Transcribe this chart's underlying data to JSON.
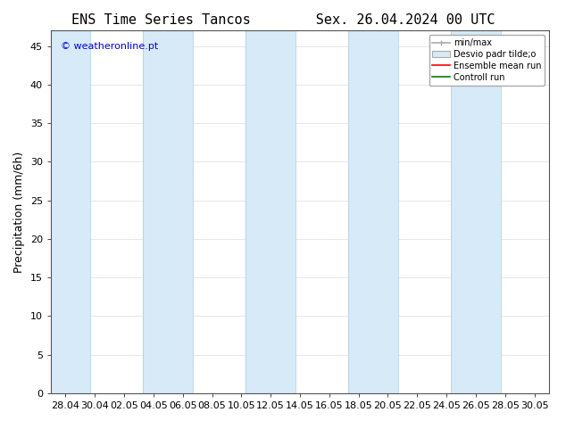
{
  "title_left": "ENS Time Series Tancos",
  "title_right": "Sex. 26.04.2024 00 UTC",
  "ylabel": "Precipitation (mm/6h)",
  "watermark": "© weatheronline.pt",
  "ylim": [
    0,
    47
  ],
  "yticks": [
    0,
    5,
    10,
    15,
    20,
    25,
    30,
    35,
    40,
    45
  ],
  "xtick_labels": [
    "28.04",
    "30.04",
    "02.05",
    "04.05",
    "06.05",
    "08.05",
    "10.05",
    "12.05",
    "14.05",
    "16.05",
    "18.05",
    "20.05",
    "22.05",
    "24.05",
    "26.05",
    "28.05",
    "30.05"
  ],
  "bg_color": "#ffffff",
  "plot_bg_color": "#ffffff",
  "band_color": "#d6eaf8",
  "band_edge_color": "#a9cce3",
  "minmax_color": "#aaaaaa",
  "desvio_color": "#d6eaf8",
  "ensemble_color": "#ff0000",
  "control_color": "#008000",
  "legend_labels": [
    "min/max",
    "Desvio padr tilde;o",
    "Ensemble mean run",
    "Controll run"
  ],
  "title_fontsize": 11,
  "axis_fontsize": 9,
  "tick_fontsize": 8,
  "watermark_fontsize": 8
}
